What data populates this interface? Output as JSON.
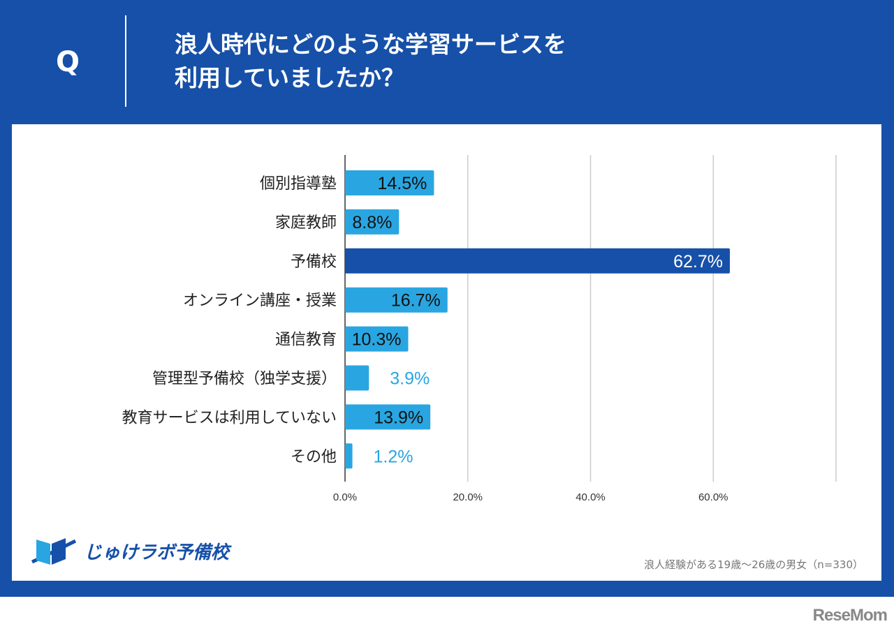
{
  "header": {
    "q_label": "Q",
    "title_line1": "浪人時代にどのような学習サービスを",
    "title_line2": "利用していましたか？"
  },
  "footer": {
    "logo_text": "じゅけラボ予備校",
    "note": "浪人経験がある19歳～26歳の男女（n=330）",
    "watermark": "ReseMom"
  },
  "colors": {
    "frame": "#1650a8",
    "bar": "#29a6e1",
    "highlight": "#1650a8"
  },
  "chart_data": {
    "type": "bar",
    "orientation": "horizontal",
    "categories": [
      "個別指導塾",
      "家庭教師",
      "予備校",
      "オンライン講座・授業",
      "通信教育",
      "管理型予備校（独学支援）",
      "教育サービスは利用していない",
      "その他"
    ],
    "values": [
      14.5,
      8.8,
      62.7,
      16.7,
      10.3,
      3.9,
      13.9,
      1.2
    ],
    "labels": [
      "14.5%",
      "8.8%",
      "62.7%",
      "16.7%",
      "10.3%",
      "3.9%",
      "13.9%",
      "1.2%"
    ],
    "highlight_index": 2,
    "xlim": [
      0,
      80
    ],
    "xticks": [
      0,
      20,
      40,
      60,
      80
    ],
    "xtick_labels": [
      "0.0%",
      "20.0%",
      "40.0%",
      "60.0%",
      ""
    ],
    "grid": true
  }
}
